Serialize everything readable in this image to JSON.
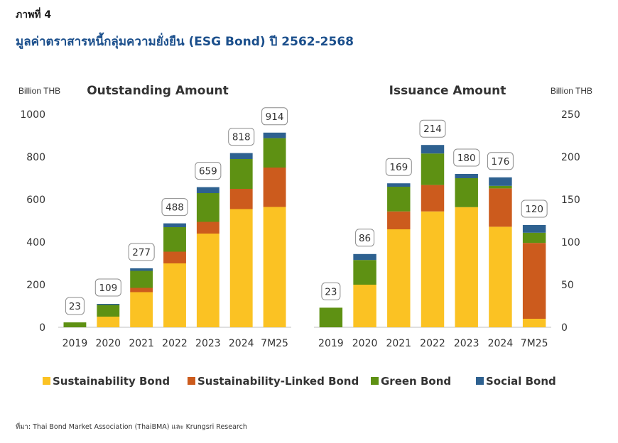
{
  "figure": {
    "label": "ภาพที่ 4",
    "title": "มูลค่าตราสารหนี้กลุ่มความยั่งยืน (ESG Bond) ปี 2562-2568",
    "source": "ที่มา: Thai Bond Market Association (ThaiBMA) และ Krungsri Research"
  },
  "legend": [
    {
      "name": "Sustainability Bond",
      "color": "#FBC223"
    },
    {
      "name": "Sustainability-Linked Bond",
      "color": "#CC5B1D"
    },
    {
      "name": "Green Bond",
      "color": "#5E9113"
    },
    {
      "name": "Social Bond",
      "color": "#2E6190"
    }
  ],
  "chart_data": [
    {
      "type": "bar",
      "stacked": true,
      "title": "Outstanding Amount",
      "ylabel": "Billion THB",
      "categories": [
        "2019",
        "2020",
        "2021",
        "2022",
        "2023",
        "2024",
        "7M25"
      ],
      "ylim": [
        0,
        1000
      ],
      "yticks": [
        0,
        200,
        400,
        600,
        800,
        1000
      ],
      "axis_side": "left",
      "series": [
        {
          "name": "Sustainability Bond",
          "values": [
            0,
            50,
            165,
            300,
            440,
            555,
            565
          ]
        },
        {
          "name": "Sustainability-Linked Bond",
          "values": [
            0,
            0,
            20,
            55,
            55,
            95,
            185
          ]
        },
        {
          "name": "Green Bond",
          "values": [
            23,
            55,
            80,
            115,
            135,
            140,
            138
          ]
        },
        {
          "name": "Social Bond",
          "values": [
            0,
            5,
            12,
            18,
            28,
            28,
            26
          ]
        }
      ],
      "totals": [
        23,
        109,
        277,
        488,
        659,
        818,
        914
      ]
    },
    {
      "type": "bar",
      "stacked": true,
      "title": "Issuance Amount",
      "ylabel": "Billion THB",
      "categories": [
        "2019",
        "2020",
        "2021",
        "2022",
        "2023",
        "2024",
        "7M25"
      ],
      "ylim": [
        0,
        250
      ],
      "yticks": [
        0,
        50,
        100,
        150,
        200,
        250
      ],
      "axis_side": "right",
      "series": [
        {
          "name": "Sustainability Bond",
          "values": [
            0,
            50,
            115,
            136,
            141,
            118,
            10
          ]
        },
        {
          "name": "Sustainability-Linked Bond",
          "values": [
            0,
            0,
            21,
            31,
            0,
            45,
            89
          ]
        },
        {
          "name": "Green Bond",
          "values": [
            23,
            29,
            29,
            37,
            34,
            3,
            12
          ]
        },
        {
          "name": "Social Bond",
          "values": [
            0,
            7,
            4,
            10,
            5,
            10,
            9
          ]
        }
      ],
      "totals": [
        23,
        86,
        169,
        214,
        180,
        176,
        120
      ]
    }
  ]
}
